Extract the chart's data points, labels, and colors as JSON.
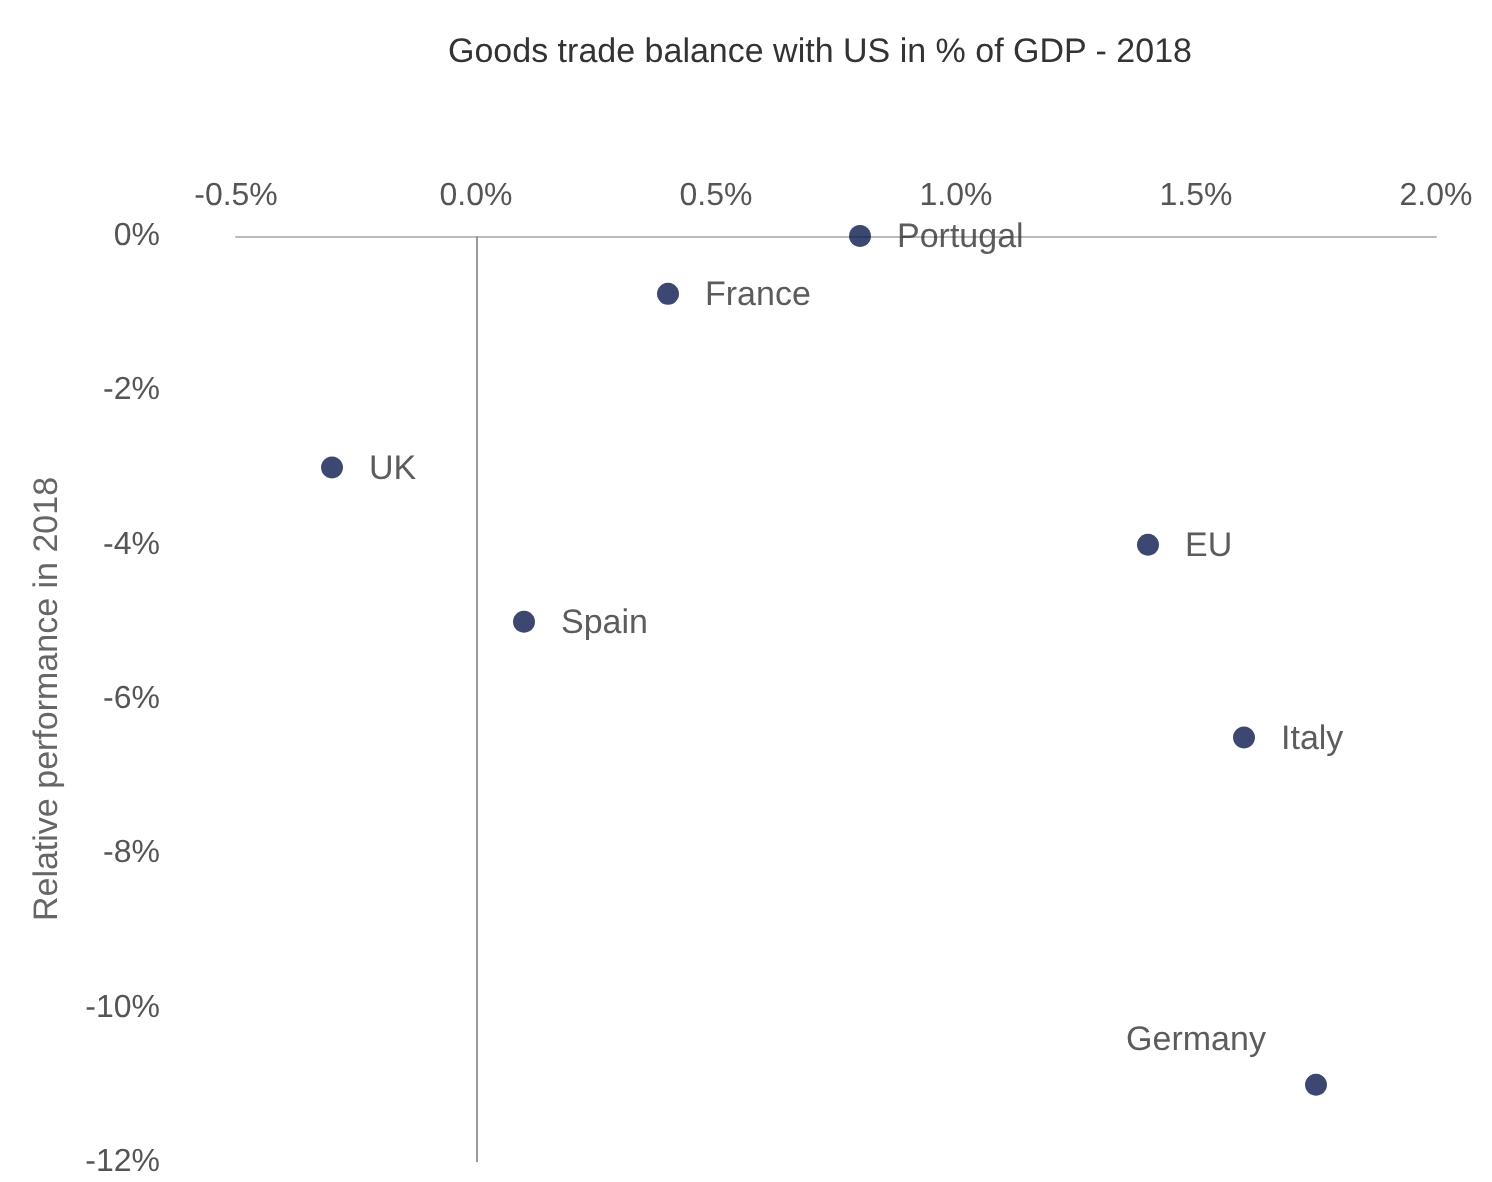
{
  "chart_data": {
    "type": "scatter",
    "title": "Goods trade balance with US in % of GDP - 2018",
    "ylabel": "Relative performance in 2018",
    "series": [
      {
        "name": "Portugal",
        "color": "#0b1a4f",
        "x": [
          0.8
        ],
        "values": [
          0
        ]
      },
      {
        "name": "France",
        "color": "#0b1a4f",
        "x": [
          0.4
        ],
        "values": [
          -0.75
        ]
      },
      {
        "name": "UK",
        "color": "#0b1a4f",
        "x": [
          -0.3
        ],
        "values": [
          -3
        ]
      },
      {
        "name": "Spain",
        "color": "#0b1a4f",
        "x": [
          0.1
        ],
        "values": [
          -5
        ]
      },
      {
        "name": "EU",
        "color": "#0b1a4f",
        "x": [
          1.4
        ],
        "values": [
          -4
        ]
      },
      {
        "name": "Italy",
        "color": "#0b1a4f",
        "x": [
          1.6
        ],
        "values": [
          -6.5
        ]
      },
      {
        "name": "Germany",
        "color": "#0b1a4f",
        "x": [
          1.75
        ],
        "values": [
          -11
        ]
      }
    ],
    "marker": "circle",
    "grid": false,
    "xlim": [
      -0.5,
      2.0
    ],
    "xticks": [
      {
        "value": -0.5,
        "label": "-0.5%"
      },
      {
        "value": 0,
        "label": "0.0%"
      },
      {
        "value": 0.5,
        "label": "0.5%"
      },
      {
        "value": 1.0,
        "label": "1.0%"
      },
      {
        "value": 1.5,
        "label": "1.5%"
      },
      {
        "value": 2.0,
        "label": "2.0%"
      }
    ],
    "ylim": [
      -12,
      0
    ],
    "yticks": [
      {
        "value": 0,
        "label": "0%"
      },
      {
        "value": -2,
        "label": "-2%"
      },
      {
        "value": -4,
        "label": "-4%"
      },
      {
        "value": -6,
        "label": "-6%"
      },
      {
        "value": -8,
        "label": "-8%"
      },
      {
        "value": -10,
        "label": "-10%"
      },
      {
        "value": -12,
        "label": "-12%"
      }
    ],
    "ref_lines": [
      {
        "axis": "x",
        "value": 0,
        "color": "#999999"
      }
    ]
  }
}
